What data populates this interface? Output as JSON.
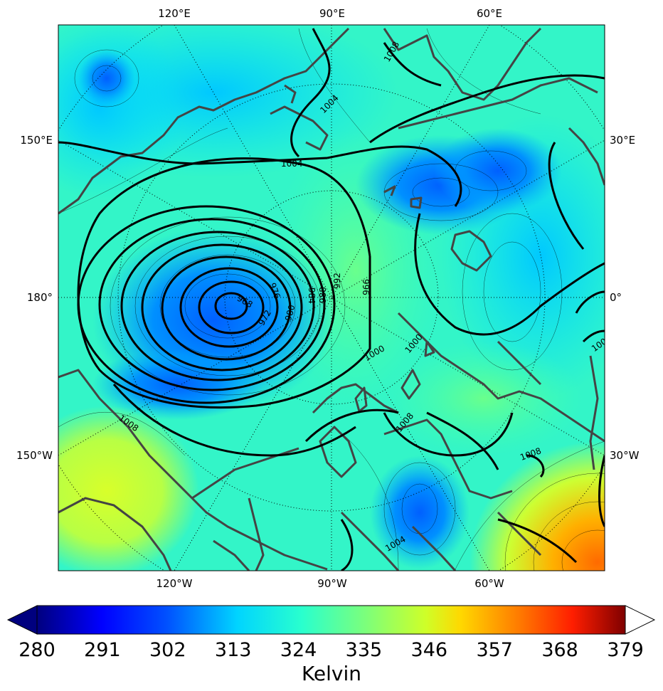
{
  "map": {
    "projection": "north-polar-stereographic",
    "field": "potential temperature (shaded) with sea-level pressure contours",
    "top_longitude_labels": [
      "120°E",
      "90°E",
      "60°E"
    ],
    "bottom_longitude_labels": [
      "120°W",
      "90°W",
      "60°W"
    ],
    "left_longitude_labels": [
      "150°E",
      "180°",
      "150°W"
    ],
    "right_longitude_labels": [
      "30°E",
      "0°",
      "30°W"
    ],
    "pressure_contour_labels": [
      "968",
      "972",
      "976",
      "980",
      "984",
      "988",
      "992",
      "996",
      "1000",
      "1000",
      "1004",
      "1004",
      "1008",
      "1008",
      "1008",
      "1008",
      "1004",
      "1000"
    ],
    "low_center_value": "968"
  },
  "colorbar": {
    "ticks": [
      "280",
      "291",
      "302",
      "313",
      "324",
      "335",
      "346",
      "357",
      "368",
      "379"
    ],
    "title": "Kelvin",
    "extend": "both",
    "colormap": "jet",
    "range": [
      280,
      379
    ]
  }
}
